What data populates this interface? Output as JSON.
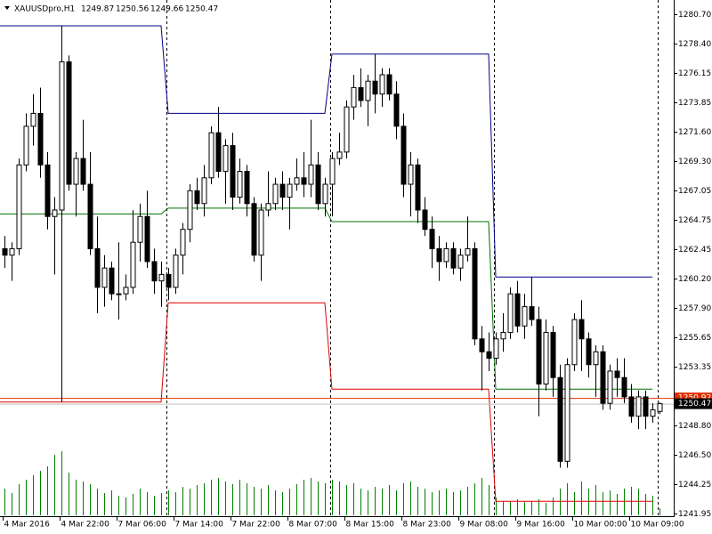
{
  "chart_data": {
    "type": "candlestick",
    "title": "XAUUSDpro,H1",
    "header_ohlc": [
      1249.87,
      1250.56,
      1249.66,
      1250.47
    ],
    "ylim": [
      1241.74,
      1281.8
    ],
    "yticks": [
      {
        "value": 1280.7,
        "label": "1280.70"
      },
      {
        "value": 1278.4,
        "label": "1278.40"
      },
      {
        "value": 1276.15,
        "label": "1276.15"
      },
      {
        "value": 1273.85,
        "label": "1273.85"
      },
      {
        "value": 1271.6,
        "label": "1271.60"
      },
      {
        "value": 1269.3,
        "label": "1269.30"
      },
      {
        "value": 1267.05,
        "label": "1267.05"
      },
      {
        "value": 1264.75,
        "label": "1264.75"
      },
      {
        "value": 1262.45,
        "label": "1262.45"
      },
      {
        "value": 1260.2,
        "label": "1260.20"
      },
      {
        "value": 1257.9,
        "label": "1257.90"
      },
      {
        "value": 1255.65,
        "label": "1255.65"
      },
      {
        "value": 1253.35,
        "label": "1253.35"
      },
      {
        "value": 1248.8,
        "label": "1248.80"
      },
      {
        "value": 1246.5,
        "label": "1246.50"
      },
      {
        "value": 1244.25,
        "label": "1244.25"
      },
      {
        "value": 1241.95,
        "label": "1241.95"
      }
    ],
    "categories": [
      "4 Mar 2016",
      null,
      null,
      null,
      null,
      null,
      null,
      null,
      "4 Mar 22:00",
      null,
      null,
      null,
      null,
      null,
      null,
      null,
      "7 Mar 06:00",
      null,
      null,
      null,
      null,
      null,
      null,
      null,
      "7 Mar 14:00",
      null,
      null,
      null,
      null,
      null,
      null,
      null,
      "7 Mar 22:00",
      null,
      null,
      null,
      null,
      null,
      null,
      null,
      "8 Mar 07:00",
      null,
      null,
      null,
      null,
      null,
      null,
      null,
      "8 Mar 15:00",
      null,
      null,
      null,
      null,
      null,
      null,
      null,
      "8 Mar 23:00",
      null,
      null,
      null,
      null,
      null,
      null,
      null,
      "9 Mar 08:00",
      null,
      null,
      null,
      null,
      null,
      null,
      null,
      "9 Mar 16:00",
      null,
      null,
      null,
      null,
      null,
      null,
      null,
      "10 Mar 00:00",
      null,
      null,
      null,
      null,
      null,
      null,
      null,
      "10 Mar 09:00",
      null,
      null,
      null,
      null
    ],
    "up_color": "#ffffff",
    "down_color": "#000000",
    "ohlc": [
      [
        1262.5,
        1263.5,
        1261.0,
        1262.0
      ],
      [
        1262.0,
        1263.0,
        1260.0,
        1262.5
      ],
      [
        1262.5,
        1269.5,
        1262.0,
        1269.0
      ],
      [
        1269.0,
        1273.0,
        1268.5,
        1272.0
      ],
      [
        1272.0,
        1274.5,
        1270.5,
        1273.0
      ],
      [
        1273.0,
        1275.0,
        1268.0,
        1269.0
      ],
      [
        1269.0,
        1270.0,
        1264.0,
        1265.0
      ],
      [
        1265.0,
        1266.5,
        1260.5,
        1265.5
      ],
      [
        1265.5,
        1279.8,
        1250.6,
        1277.0
      ],
      [
        1277.0,
        1277.5,
        1267.0,
        1267.5
      ],
      [
        1267.5,
        1270.0,
        1265.0,
        1269.5
      ],
      [
        1269.5,
        1272.5,
        1267.0,
        1267.5
      ],
      [
        1267.5,
        1270.0,
        1262.0,
        1262.5
      ],
      [
        1262.5,
        1265.0,
        1257.5,
        1259.5
      ],
      [
        1259.5,
        1262.0,
        1258.0,
        1261.0
      ],
      [
        1261.0,
        1261.5,
        1258.5,
        1259.0
      ],
      [
        1259.0,
        1263.0,
        1257.0,
        1259.0
      ],
      [
        1259.0,
        1260.5,
        1258.5,
        1259.5
      ],
      [
        1259.5,
        1265.5,
        1259.0,
        1263.0
      ],
      [
        1263.0,
        1266.0,
        1261.5,
        1265.0
      ],
      [
        1265.0,
        1267.0,
        1261.0,
        1261.5
      ],
      [
        1261.5,
        1262.5,
        1259.0,
        1260.0
      ],
      [
        1260.0,
        1261.5,
        1258.0,
        1260.5
      ],
      [
        1260.5,
        1261.0,
        1258.5,
        1259.5
      ],
      [
        1259.5,
        1262.5,
        1259.0,
        1262.0
      ],
      [
        1262.0,
        1264.5,
        1260.5,
        1264.0
      ],
      [
        1264.0,
        1267.5,
        1263.0,
        1267.0
      ],
      [
        1267.0,
        1268.0,
        1265.5,
        1266.0
      ],
      [
        1266.0,
        1269.0,
        1265.0,
        1268.0
      ],
      [
        1268.0,
        1272.0,
        1267.5,
        1271.5
      ],
      [
        1271.5,
        1273.5,
        1268.0,
        1268.5
      ],
      [
        1268.5,
        1271.0,
        1266.0,
        1270.5
      ],
      [
        1270.5,
        1271.5,
        1265.5,
        1266.5
      ],
      [
        1266.5,
        1269.5,
        1266.0,
        1268.5
      ],
      [
        1268.5,
        1269.0,
        1265.0,
        1266.0
      ],
      [
        1266.0,
        1266.5,
        1261.5,
        1262.0
      ],
      [
        1262.0,
        1266.0,
        1260.0,
        1265.5
      ],
      [
        1265.5,
        1268.5,
        1265.0,
        1266.0
      ],
      [
        1266.0,
        1268.0,
        1265.5,
        1267.5
      ],
      [
        1267.5,
        1268.5,
        1265.5,
        1266.5
      ],
      [
        1266.5,
        1268.0,
        1264.0,
        1267.5
      ],
      [
        1267.5,
        1269.5,
        1267.0,
        1268.0
      ],
      [
        1268.0,
        1270.0,
        1266.5,
        1267.5
      ],
      [
        1267.5,
        1272.5,
        1266.5,
        1269.0
      ],
      [
        1269.0,
        1270.0,
        1265.5,
        1266.0
      ],
      [
        1266.0,
        1268.0,
        1265.0,
        1267.5
      ],
      [
        1267.5,
        1270.0,
        1265.0,
        1269.5
      ],
      [
        1269.5,
        1271.5,
        1269.0,
        1270.0
      ],
      [
        1270.0,
        1274.0,
        1269.5,
        1273.5
      ],
      [
        1273.5,
        1276.0,
        1272.5,
        1275.0
      ],
      [
        1275.0,
        1276.5,
        1273.5,
        1274.0
      ],
      [
        1274.0,
        1276.0,
        1272.0,
        1275.5
      ],
      [
        1275.5,
        1277.6,
        1273.0,
        1274.5
      ],
      [
        1274.5,
        1276.5,
        1273.5,
        1276.0
      ],
      [
        1276.0,
        1276.5,
        1274.0,
        1274.5
      ],
      [
        1274.5,
        1275.5,
        1271.0,
        1272.0
      ],
      [
        1272.0,
        1273.0,
        1266.5,
        1267.5
      ],
      [
        1267.5,
        1270.0,
        1265.0,
        1269.0
      ],
      [
        1269.0,
        1269.5,
        1264.5,
        1265.5
      ],
      [
        1265.5,
        1266.5,
        1263.5,
        1264.0
      ],
      [
        1264.0,
        1265.0,
        1261.0,
        1262.5
      ],
      [
        1262.5,
        1263.5,
        1260.0,
        1261.5
      ],
      [
        1261.5,
        1263.0,
        1261.0,
        1262.5
      ],
      [
        1262.5,
        1263.0,
        1260.5,
        1261.0
      ],
      [
        1261.0,
        1262.5,
        1260.0,
        1262.0
      ],
      [
        1262.0,
        1265.0,
        1261.5,
        1262.5
      ],
      [
        1262.5,
        1263.0,
        1255.0,
        1255.5
      ],
      [
        1255.5,
        1256.5,
        1251.5,
        1254.5
      ],
      [
        1254.5,
        1256.0,
        1253.0,
        1254.0
      ],
      [
        1254.0,
        1256.0,
        1253.5,
        1255.5
      ],
      [
        1255.5,
        1257.5,
        1254.5,
        1256.0
      ],
      [
        1256.0,
        1259.5,
        1255.5,
        1259.0
      ],
      [
        1259.0,
        1260.0,
        1256.0,
        1256.5
      ],
      [
        1256.5,
        1259.0,
        1255.5,
        1258.0
      ],
      [
        1258.0,
        1260.3,
        1256.5,
        1257.0
      ],
      [
        1257.0,
        1258.0,
        1249.5,
        1252.0
      ],
      [
        1252.0,
        1257.0,
        1251.5,
        1256.0
      ],
      [
        1256.0,
        1256.5,
        1251.0,
        1252.5
      ],
      [
        1252.5,
        1253.5,
        1245.5,
        1246.0
      ],
      [
        1246.0,
        1254.0,
        1245.5,
        1253.5
      ],
      [
        1253.5,
        1257.5,
        1253.0,
        1257.0
      ],
      [
        1257.0,
        1258.5,
        1253.0,
        1255.5
      ],
      [
        1255.5,
        1256.0,
        1252.5,
        1253.5
      ],
      [
        1253.5,
        1255.0,
        1251.0,
        1254.5
      ],
      [
        1254.5,
        1255.0,
        1250.0,
        1250.5
      ],
      [
        1250.5,
        1253.5,
        1250.0,
        1253.0
      ],
      [
        1253.0,
        1254.0,
        1251.0,
        1252.5
      ],
      [
        1252.5,
        1254.0,
        1250.5,
        1251.0
      ],
      [
        1251.0,
        1252.0,
        1249.0,
        1249.5
      ],
      [
        1249.5,
        1251.5,
        1248.5,
        1251.0
      ],
      [
        1251.0,
        1251.5,
        1248.5,
        1249.5
      ],
      [
        1249.5,
        1250.5,
        1249.0,
        1250.0
      ],
      [
        1249.87,
        1250.56,
        1249.66,
        1250.47
      ]
    ],
    "volume_color": "#008000",
    "volume_lim": [
      0,
      100
    ],
    "volumes": [
      30,
      25,
      35,
      40,
      45,
      50,
      55,
      68,
      72,
      48,
      40,
      38,
      35,
      30,
      25,
      28,
      22,
      20,
      24,
      30,
      26,
      22,
      25,
      28,
      26,
      32,
      30,
      34,
      36,
      40,
      42,
      38,
      35,
      40,
      36,
      32,
      30,
      34,
      28,
      26,
      30,
      35,
      40,
      42,
      38,
      36,
      40,
      38,
      34,
      36,
      30,
      28,
      32,
      30,
      34,
      28,
      36,
      38,
      32,
      30,
      26,
      28,
      30,
      26,
      28,
      32,
      36,
      42,
      34,
      20,
      16,
      15,
      18,
      15,
      16,
      18,
      14,
      20,
      30,
      36,
      26,
      38,
      30,
      34,
      26,
      28,
      24,
      30,
      32,
      30,
      24,
      22,
      8
    ],
    "channel": [
      {
        "color": "#00008b",
        "values": [
          1279.8,
          1279.8,
          1279.8,
          1279.8,
          1279.8,
          1279.8,
          1279.8,
          1279.8,
          1279.8,
          1279.8,
          1279.8,
          1279.8,
          1279.8,
          1279.8,
          1279.8,
          1279.8,
          1279.8,
          1279.8,
          1279.8,
          1279.8,
          1279.8,
          1279.8,
          1279.8,
          1273.0,
          1273.0,
          1273.0,
          1273.0,
          1273.0,
          1273.0,
          1273.0,
          1273.0,
          1273.0,
          1273.0,
          1273.0,
          1273.0,
          1273.0,
          1273.0,
          1273.0,
          1273.0,
          1273.0,
          1273.0,
          1273.0,
          1273.0,
          1273.0,
          1273.0,
          1273.0,
          1277.6,
          1277.6,
          1277.6,
          1277.6,
          1277.6,
          1277.6,
          1277.6,
          1277.6,
          1277.6,
          1277.6,
          1277.6,
          1277.6,
          1277.6,
          1277.6,
          1277.6,
          1277.6,
          1277.6,
          1277.6,
          1277.6,
          1277.6,
          1277.6,
          1277.6,
          1277.6,
          1260.3,
          1260.3,
          1260.3,
          1260.3,
          1260.3,
          1260.3,
          1260.3,
          1260.3,
          1260.3,
          1260.3,
          1260.3,
          1260.3,
          1260.3,
          1260.3,
          1260.3,
          1260.3,
          1260.3,
          1260.3,
          1260.3,
          1260.3,
          1260.3,
          1260.3,
          1260.3,
          null
        ]
      },
      {
        "color": "#007000",
        "values": [
          1265.2,
          1265.2,
          1265.2,
          1265.2,
          1265.2,
          1265.2,
          1265.2,
          1265.2,
          1265.2,
          1265.2,
          1265.2,
          1265.2,
          1265.2,
          1265.2,
          1265.2,
          1265.2,
          1265.2,
          1265.2,
          1265.2,
          1265.2,
          1265.2,
          1265.2,
          1265.2,
          1265.65,
          1265.65,
          1265.65,
          1265.65,
          1265.65,
          1265.65,
          1265.65,
          1265.65,
          1265.65,
          1265.65,
          1265.65,
          1265.65,
          1265.65,
          1265.65,
          1265.65,
          1265.65,
          1265.65,
          1265.65,
          1265.65,
          1265.65,
          1265.65,
          1265.65,
          1265.65,
          1264.6,
          1264.6,
          1264.6,
          1264.6,
          1264.6,
          1264.6,
          1264.6,
          1264.6,
          1264.6,
          1264.6,
          1264.6,
          1264.6,
          1264.6,
          1264.6,
          1264.6,
          1264.6,
          1264.6,
          1264.6,
          1264.6,
          1264.6,
          1264.6,
          1264.6,
          1264.6,
          1251.6,
          1251.6,
          1251.6,
          1251.6,
          1251.6,
          1251.6,
          1251.6,
          1251.6,
          1251.6,
          1251.6,
          1251.6,
          1251.6,
          1251.6,
          1251.6,
          1251.6,
          1251.6,
          1251.6,
          1251.6,
          1251.6,
          1251.6,
          1251.6,
          1251.6,
          1251.6,
          null
        ]
      },
      {
        "color": "#e00000",
        "values": [
          1250.6,
          1250.6,
          1250.6,
          1250.6,
          1250.6,
          1250.6,
          1250.6,
          1250.6,
          1250.6,
          1250.6,
          1250.6,
          1250.6,
          1250.6,
          1250.6,
          1250.6,
          1250.6,
          1250.6,
          1250.6,
          1250.6,
          1250.6,
          1250.6,
          1250.6,
          1250.6,
          1258.3,
          1258.3,
          1258.3,
          1258.3,
          1258.3,
          1258.3,
          1258.3,
          1258.3,
          1258.3,
          1258.3,
          1258.3,
          1258.3,
          1258.3,
          1258.3,
          1258.3,
          1258.3,
          1258.3,
          1258.3,
          1258.3,
          1258.3,
          1258.3,
          1258.3,
          1258.3,
          1251.6,
          1251.6,
          1251.6,
          1251.6,
          1251.6,
          1251.6,
          1251.6,
          1251.6,
          1251.6,
          1251.6,
          1251.6,
          1251.6,
          1251.6,
          1251.6,
          1251.6,
          1251.6,
          1251.6,
          1251.6,
          1251.6,
          1251.6,
          1251.6,
          1251.6,
          1251.6,
          1242.9,
          1242.9,
          1242.9,
          1242.9,
          1242.9,
          1242.9,
          1242.9,
          1242.9,
          1242.9,
          1242.9,
          1242.9,
          1242.9,
          1242.9,
          1242.9,
          1242.9,
          1242.9,
          1242.9,
          1242.9,
          1242.9,
          1242.9,
          1242.9,
          1242.9,
          1242.9,
          null
        ]
      }
    ],
    "ask": {
      "value": 1250.92,
      "color": "#e03000"
    },
    "bid": {
      "value": 1250.47,
      "color": "#000000"
    }
  }
}
